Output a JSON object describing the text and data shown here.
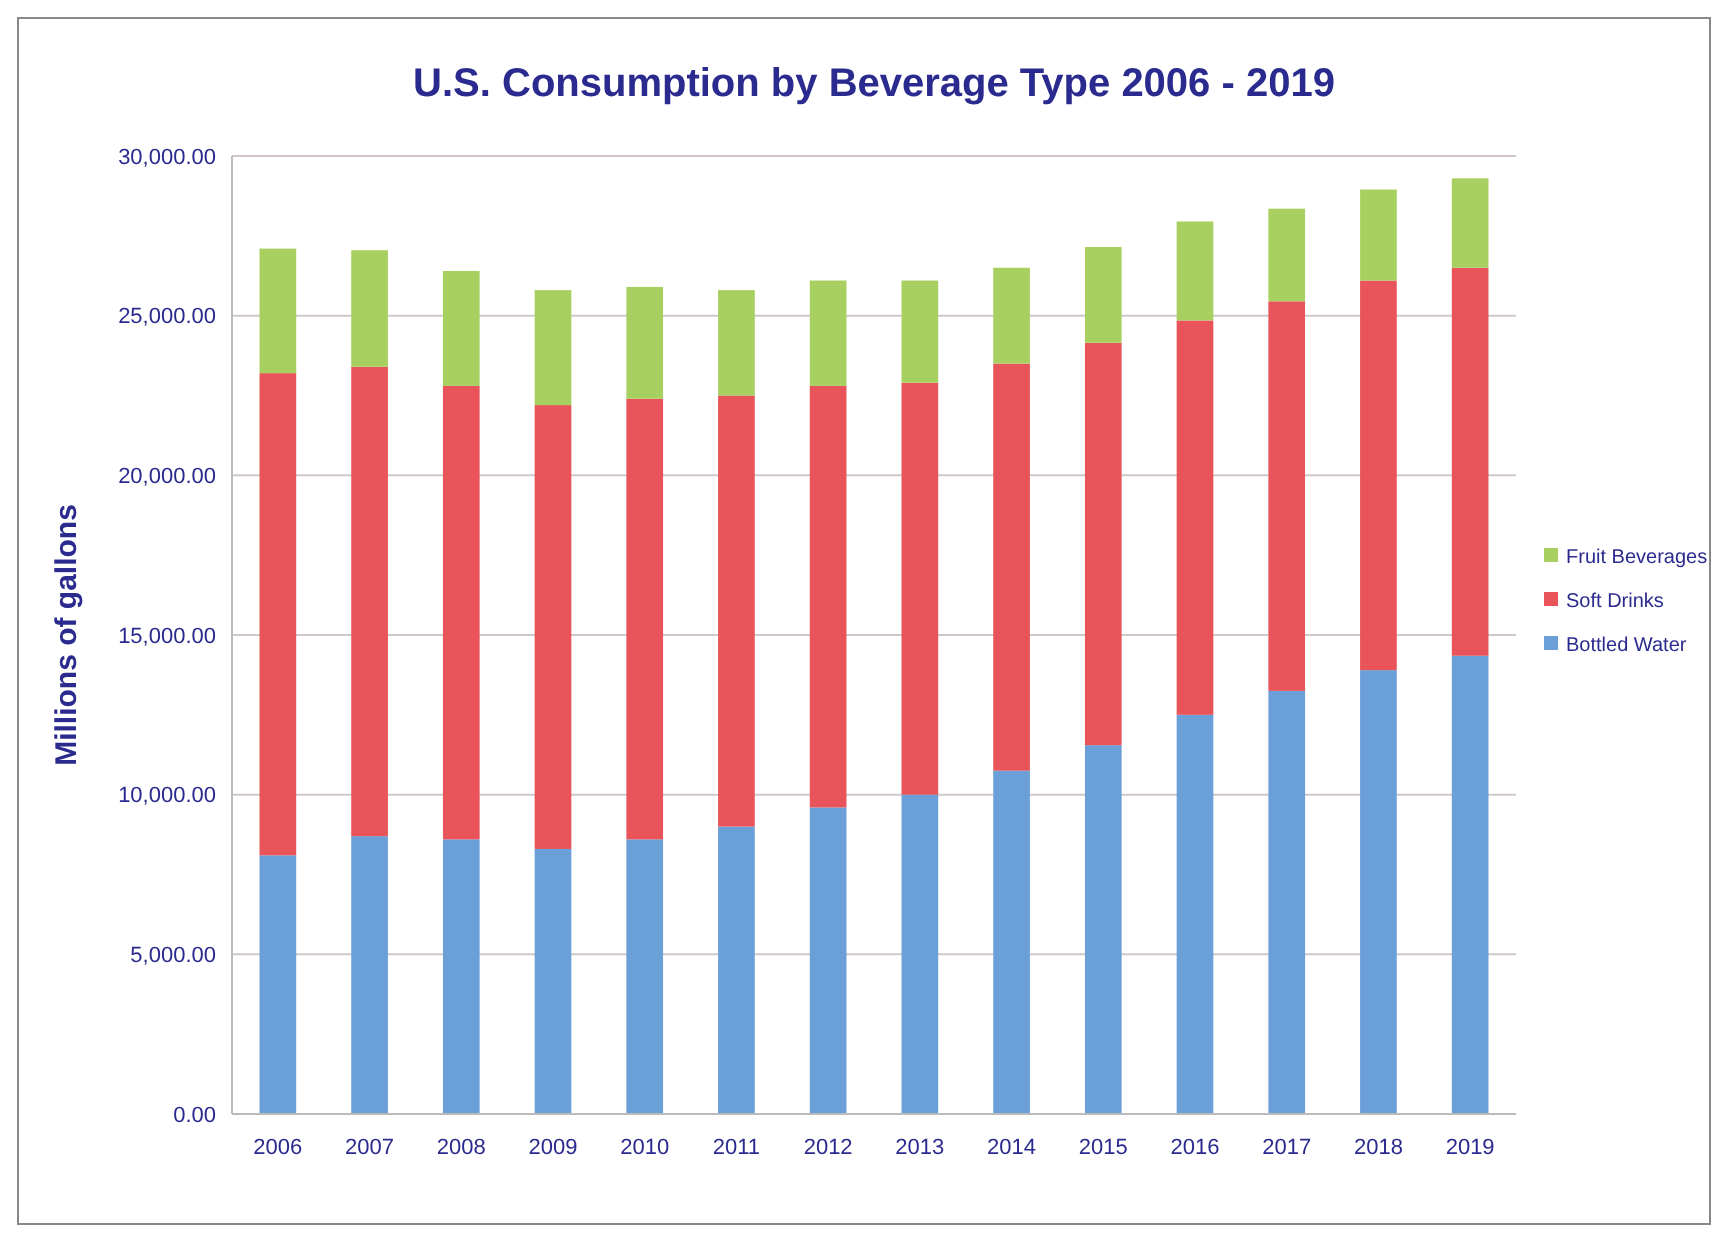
{
  "chart_data": {
    "type": "bar",
    "title": "U.S. Consumption by Beverage Type 2006 - 2019",
    "ylabel": "Millions of gallons",
    "stacked": true,
    "grid": "y",
    "legend": "right",
    "categories": [
      "2006",
      "2007",
      "2008",
      "2009",
      "2010",
      "2011",
      "2012",
      "2013",
      "2014",
      "2015",
      "2016",
      "2017",
      "2018",
      "2019"
    ],
    "series": [
      {
        "name": "Bottled Water",
        "color": "#6a9fd8",
        "values": [
          8100,
          8700,
          8600,
          8300,
          8600,
          9000,
          9600,
          10000,
          10750,
          11550,
          12500,
          13250,
          13900,
          14350
        ]
      },
      {
        "name": "Soft Drinks",
        "color": "#e8545a",
        "values": [
          15100,
          14700,
          14200,
          13900,
          13800,
          13500,
          13200,
          12900,
          12750,
          12600,
          12350,
          12200,
          12200,
          12150
        ]
      },
      {
        "name": "Fruit Beverages",
        "color": "#a8d060",
        "values": [
          3900,
          3650,
          3600,
          3600,
          3500,
          3300,
          3300,
          3200,
          3000,
          3000,
          3100,
          2900,
          2850,
          2800
        ]
      }
    ],
    "ylim": [
      0,
      30000
    ],
    "yticks": [
      {
        "value": 0,
        "label": "0.00"
      },
      {
        "value": 5000,
        "label": "5,000.00"
      },
      {
        "value": 10000,
        "label": "10,000.00"
      },
      {
        "value": 15000,
        "label": "15,000.00"
      },
      {
        "value": 20000,
        "label": "20,000.00"
      },
      {
        "value": 25000,
        "label": "25,000.00"
      },
      {
        "value": 30000,
        "label": "30,000.00"
      }
    ]
  }
}
